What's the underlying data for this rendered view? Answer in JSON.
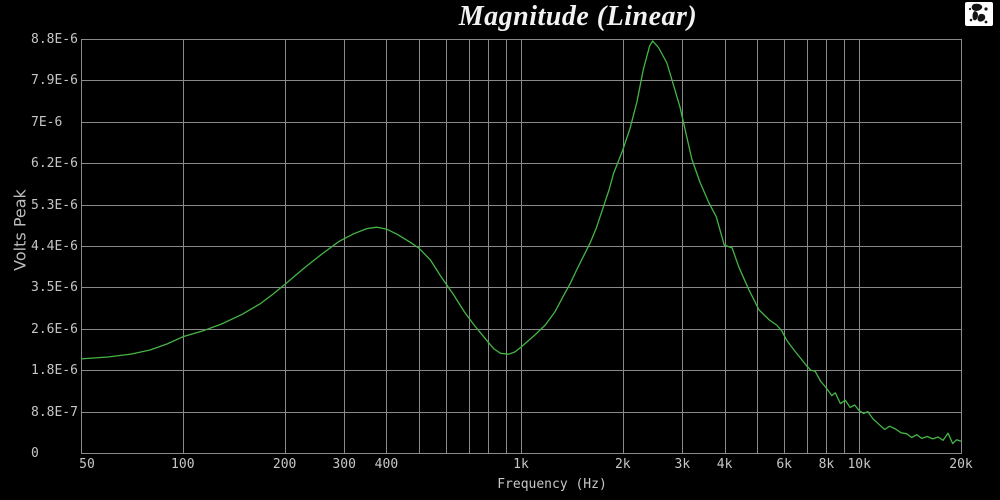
{
  "window": {
    "background": "#000000"
  },
  "header": {
    "title": "Magnitude (Linear)",
    "logo_icon": "paint-splatter-logo"
  },
  "colors": {
    "background": "#000000",
    "grid": "#8a8a8a",
    "curve": "#45b545",
    "tick_label": "#c6c6c6",
    "axis_label": "#bdbdbd",
    "title": "#f2f2f2",
    "logo_bg": "#ffffff",
    "logo_fg": "#141414"
  },
  "chart_data": {
    "type": "line",
    "title": "Magnitude (Linear)",
    "xlabel": "Frequency (Hz)",
    "ylabel": "Volts Peak",
    "x_scale": "log",
    "x_range": [
      50,
      20000
    ],
    "y_range": [
      0,
      8.8
    ],
    "y_value_scale": "1e-6 (values below are in volts x 1e-6)",
    "grid": true,
    "legend": "none",
    "x_gridlines": [
      100,
      200,
      300,
      400,
      500,
      600,
      700,
      800,
      900,
      1000,
      2000,
      3000,
      4000,
      5000,
      6000,
      7000,
      8000,
      9000,
      10000
    ],
    "x_ticks": [
      {
        "value": 50,
        "label": "50"
      },
      {
        "value": 100,
        "label": "100"
      },
      {
        "value": 200,
        "label": "200"
      },
      {
        "value": 300,
        "label": "300"
      },
      {
        "value": 400,
        "label": "400"
      },
      {
        "value": 1000,
        "label": "1k"
      },
      {
        "value": 2000,
        "label": "2k"
      },
      {
        "value": 3000,
        "label": "3k"
      },
      {
        "value": 4000,
        "label": "4k"
      },
      {
        "value": 6000,
        "label": "6k"
      },
      {
        "value": 8000,
        "label": "8k"
      },
      {
        "value": 10000,
        "label": "10k"
      },
      {
        "value": 20000,
        "label": "20k"
      }
    ],
    "y_ticks": [
      {
        "value": 8.8,
        "label": "8.8E-6"
      },
      {
        "value": 7.92,
        "label": "7.9E-6"
      },
      {
        "value": 7.04,
        "label": "7E-6"
      },
      {
        "value": 6.16,
        "label": "6.2E-6"
      },
      {
        "value": 5.28,
        "label": "5.3E-6"
      },
      {
        "value": 4.4,
        "label": "4.4E-6"
      },
      {
        "value": 3.52,
        "label": "3.5E-6"
      },
      {
        "value": 2.64,
        "label": "2.6E-6"
      },
      {
        "value": 1.76,
        "label": "1.8E-6"
      },
      {
        "value": 0.88,
        "label": "8.8E-7"
      },
      {
        "value": 0,
        "label": "0"
      }
    ],
    "series": [
      {
        "name": "magnitude",
        "color": "#45b545",
        "points": [
          [
            50,
            2.0
          ],
          [
            60,
            2.04
          ],
          [
            70,
            2.1
          ],
          [
            80,
            2.19
          ],
          [
            90,
            2.32
          ],
          [
            100,
            2.47
          ],
          [
            115,
            2.6
          ],
          [
            130,
            2.74
          ],
          [
            150,
            2.95
          ],
          [
            170,
            3.18
          ],
          [
            185,
            3.38
          ],
          [
            200,
            3.58
          ],
          [
            230,
            3.95
          ],
          [
            260,
            4.25
          ],
          [
            290,
            4.5
          ],
          [
            320,
            4.66
          ],
          [
            350,
            4.77
          ],
          [
            375,
            4.8
          ],
          [
            400,
            4.76
          ],
          [
            430,
            4.65
          ],
          [
            470,
            4.48
          ],
          [
            500,
            4.35
          ],
          [
            540,
            4.1
          ],
          [
            580,
            3.75
          ],
          [
            630,
            3.38
          ],
          [
            680,
            3.0
          ],
          [
            730,
            2.7
          ],
          [
            780,
            2.45
          ],
          [
            830,
            2.22
          ],
          [
            870,
            2.12
          ],
          [
            920,
            2.1
          ],
          [
            960,
            2.15
          ],
          [
            1000,
            2.25
          ],
          [
            1100,
            2.51
          ],
          [
            1180,
            2.72
          ],
          [
            1260,
            3.0
          ],
          [
            1330,
            3.32
          ],
          [
            1400,
            3.61
          ],
          [
            1460,
            3.89
          ],
          [
            1520,
            4.14
          ],
          [
            1600,
            4.46
          ],
          [
            1670,
            4.78
          ],
          [
            1740,
            5.17
          ],
          [
            1820,
            5.59
          ],
          [
            1880,
            5.95
          ],
          [
            2000,
            6.44
          ],
          [
            2100,
            6.9
          ],
          [
            2200,
            7.45
          ],
          [
            2300,
            8.15
          ],
          [
            2400,
            8.65
          ],
          [
            2450,
            8.76
          ],
          [
            2550,
            8.62
          ],
          [
            2700,
            8.29
          ],
          [
            2950,
            7.36
          ],
          [
            3200,
            6.25
          ],
          [
            3380,
            5.76
          ],
          [
            3600,
            5.31
          ],
          [
            3780,
            5.02
          ],
          [
            3990,
            4.42
          ],
          [
            4210,
            4.36
          ],
          [
            4410,
            3.95
          ],
          [
            4720,
            3.47
          ],
          [
            5060,
            3.04
          ],
          [
            5420,
            2.83
          ],
          [
            5700,
            2.72
          ],
          [
            5900,
            2.6
          ],
          [
            6100,
            2.4
          ],
          [
            6400,
            2.2
          ],
          [
            6700,
            2.02
          ],
          [
            7000,
            1.85
          ],
          [
            7200,
            1.76
          ],
          [
            7400,
            1.74
          ],
          [
            7700,
            1.52
          ],
          [
            8000,
            1.38
          ],
          [
            8300,
            1.22
          ],
          [
            8500,
            1.28
          ],
          [
            8800,
            1.05
          ],
          [
            9100,
            1.12
          ],
          [
            9400,
            0.97
          ],
          [
            9700,
            1.02
          ],
          [
            10000,
            0.9
          ],
          [
            10300,
            0.84
          ],
          [
            10600,
            0.88
          ],
          [
            11000,
            0.72
          ],
          [
            11400,
            0.62
          ],
          [
            11900,
            0.5
          ],
          [
            12300,
            0.57
          ],
          [
            12800,
            0.51
          ],
          [
            13300,
            0.43
          ],
          [
            13800,
            0.41
          ],
          [
            14300,
            0.33
          ],
          [
            14800,
            0.39
          ],
          [
            15300,
            0.31
          ],
          [
            15900,
            0.35
          ],
          [
            16500,
            0.3
          ],
          [
            17100,
            0.34
          ],
          [
            17700,
            0.27
          ],
          [
            18300,
            0.42
          ],
          [
            18900,
            0.2
          ],
          [
            19400,
            0.28
          ],
          [
            20000,
            0.25
          ]
        ]
      }
    ]
  }
}
